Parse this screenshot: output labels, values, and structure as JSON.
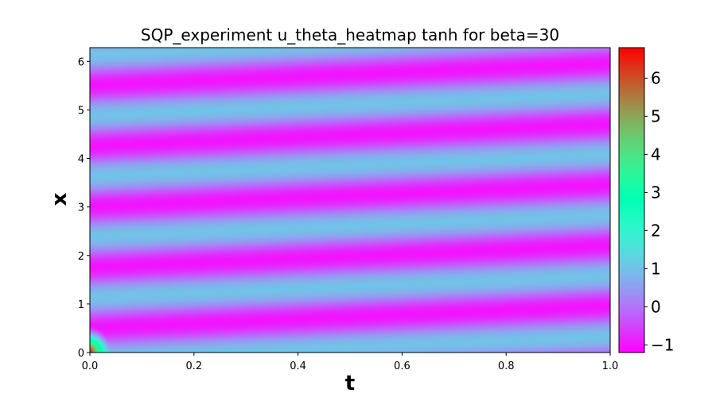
{
  "chart_data": {
    "type": "heatmap",
    "title": "SQP_experiment u_theta_heatmap tanh for beta=30",
    "xlabel": "t",
    "ylabel": "x",
    "xlim": [
      0.0,
      1.0
    ],
    "ylim": [
      0.0,
      6.283
    ],
    "x_ticks": [
      0.0,
      0.2,
      0.4,
      0.6,
      0.8,
      1.0
    ],
    "x_tick_labels": [
      "0.0",
      "0.2",
      "0.4",
      "0.6",
      "0.8",
      "1.0"
    ],
    "y_ticks": [
      0,
      1,
      2,
      3,
      4,
      5,
      6
    ],
    "y_tick_labels": [
      "0",
      "1",
      "2",
      "3",
      "4",
      "5",
      "6"
    ],
    "colorbar": {
      "vmin": -1.2,
      "vmax": 6.8,
      "ticks": [
        -1,
        0,
        1,
        2,
        3,
        4,
        5,
        6
      ],
      "tick_labels": [
        "−1",
        "0",
        "1",
        "2",
        "3",
        "4",
        "5",
        "6"
      ],
      "colormap": "rainbow"
    },
    "field": {
      "description_of_pattern": "diagonal stripes of u between about -1 and 1, with a hot spot near t=0, x=0",
      "stripe_value_min": -1.0,
      "stripe_value_max": 1.0,
      "stripe_period_x": 1.25,
      "stripe_slope_dx_dt": 0.45,
      "hotspot_peak": 6.8,
      "grid": false,
      "legend": "none"
    }
  }
}
